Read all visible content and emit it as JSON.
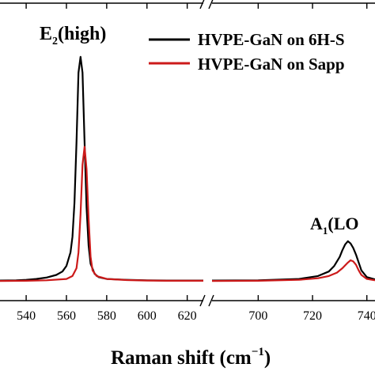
{
  "chart_data": {
    "type": "line",
    "xlabel_main": "Raman shift (cm",
    "xlabel_sup": "−1",
    "xlabel_close": ")",
    "ylabel": "",
    "axis_break": true,
    "segments": [
      {
        "xlim": [
          527,
          628
        ],
        "ticks": [
          540,
          560,
          580,
          600,
          620
        ]
      },
      {
        "xlim": [
          683,
          743
        ],
        "ticks": [
          700,
          720,
          740
        ]
      }
    ],
    "ylim": [
      0,
      1.07
    ],
    "grid": false,
    "legend": {
      "placement": "top-right",
      "entries": [
        {
          "label": "HVPE-GaN on 6H-S",
          "color": "#000000"
        },
        {
          "label": "HVPE-GaN on Sapp",
          "color": "#cc1a1a"
        }
      ]
    },
    "annotations": [
      {
        "base": "E",
        "sub": "2",
        "rest": "(high)"
      },
      {
        "base": "A",
        "sub": "1",
        "rest": "(LO"
      }
    ],
    "series": [
      {
        "name": "HVPE-GaN on 6H-S",
        "color": "#000000",
        "segment1": {
          "x": [
            527,
            535,
            540,
            545,
            550,
            555,
            558,
            560,
            562,
            563,
            564,
            565,
            566,
            567,
            568,
            569,
            570,
            571,
            572,
            574,
            576,
            580,
            590,
            600,
            610,
            620,
            628
          ],
          "y": [
            0.005,
            0.006,
            0.008,
            0.012,
            0.018,
            0.03,
            0.045,
            0.07,
            0.13,
            0.2,
            0.35,
            0.62,
            0.93,
            1.0,
            0.93,
            0.62,
            0.33,
            0.16,
            0.08,
            0.035,
            0.02,
            0.012,
            0.008,
            0.006,
            0.005,
            0.005,
            0.005
          ]
        },
        "segment2": {
          "x": [
            683,
            700,
            715,
            722,
            726,
            728,
            730,
            731,
            732,
            733,
            734,
            735,
            736,
            737,
            738,
            740,
            743
          ],
          "y": [
            0.005,
            0.006,
            0.012,
            0.025,
            0.045,
            0.07,
            0.11,
            0.14,
            0.165,
            0.18,
            0.17,
            0.15,
            0.12,
            0.085,
            0.05,
            0.02,
            0.01
          ]
        }
      },
      {
        "name": "HVPE-GaN on Sapp",
        "color": "#cc1a1a",
        "segment1": {
          "x": [
            527,
            540,
            550,
            560,
            563,
            565,
            566,
            567,
            568,
            569,
            570,
            571,
            572,
            573,
            575,
            580,
            590,
            600,
            610,
            620,
            628
          ],
          "y": [
            0.003,
            0.004,
            0.006,
            0.012,
            0.025,
            0.06,
            0.13,
            0.3,
            0.52,
            0.6,
            0.5,
            0.28,
            0.11,
            0.05,
            0.025,
            0.012,
            0.007,
            0.005,
            0.004,
            0.004,
            0.004
          ]
        },
        "segment2": {
          "x": [
            683,
            700,
            715,
            722,
            726,
            729,
            731,
            733,
            734,
            735,
            736,
            737,
            738,
            740,
            743
          ],
          "y": [
            0.003,
            0.004,
            0.008,
            0.015,
            0.025,
            0.04,
            0.06,
            0.085,
            0.095,
            0.09,
            0.075,
            0.05,
            0.03,
            0.012,
            0.006
          ]
        }
      }
    ]
  }
}
